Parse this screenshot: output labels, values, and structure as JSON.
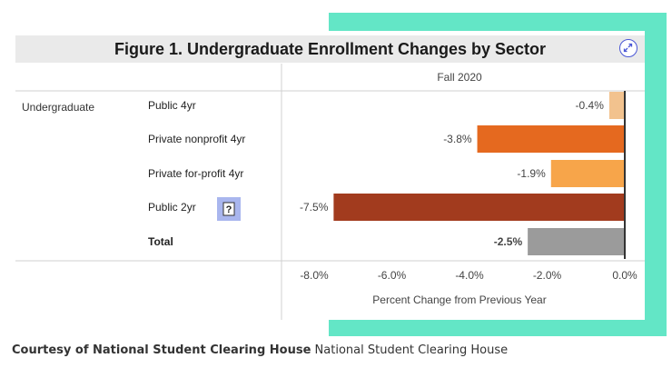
{
  "caption": {
    "bold_text": "Courtesy of National Student Clearing House",
    "text": "National Student Clearing House"
  },
  "chart_data": {
    "type": "bar",
    "orientation": "horizontal",
    "title": "Figure 1. Undergraduate Enrollment Changes by Sector",
    "column_header": "Fall 2020",
    "row_group": "Undergraduate",
    "categories": [
      "Public 4yr",
      "Private nonprofit 4yr",
      "Private for-profit 4yr",
      "Public 2yr",
      "Total"
    ],
    "values": [
      -0.4,
      -3.8,
      -1.9,
      -7.5,
      -2.5
    ],
    "value_labels": [
      "-0.4%",
      "-3.8%",
      "-1.9%",
      "-7.5%",
      "-2.5%"
    ],
    "colors": [
      "#f2c28e",
      "#e5691f",
      "#f7a54a",
      "#a23b1e",
      "#9b9b9b"
    ],
    "xlabel": "Percent Change from Previous Year",
    "xlim": [
      -8.0,
      0.0
    ],
    "xticks": [
      -8.0,
      -6.0,
      -4.0,
      -2.0,
      0.0
    ],
    "xtick_labels": [
      "-8.0%",
      "-6.0%",
      "-4.0%",
      "-2.0%",
      "0.0%"
    ],
    "info_marker": "?"
  }
}
